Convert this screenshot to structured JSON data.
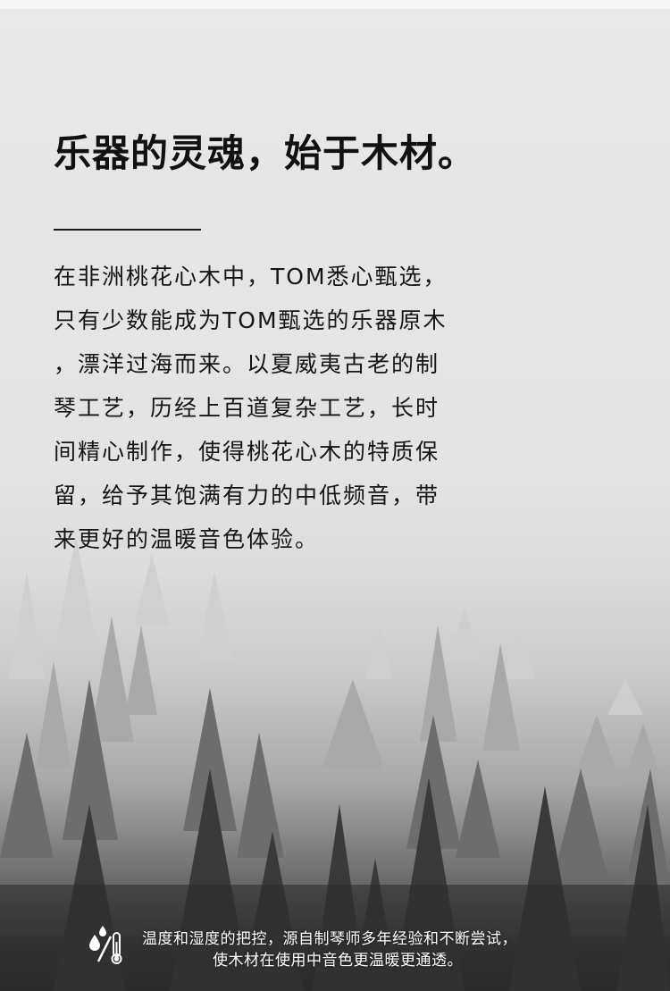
{
  "headline": "乐器的灵魂，始于木材。",
  "body_lines": [
    "在非洲桃花心木中，TOM悉心甄选，",
    "只有少数能成为TOM甄选的乐器原木",
    "，漂洋过海而来。以夏威夷古老的制",
    "琴工艺，历经上百道复杂工艺，长时",
    "间精心制作，使得桃花心木的特质保",
    "留，给予其饱满有力的中低频音，带",
    "来更好的温暖音色体验。"
  ],
  "footer": {
    "icon": "humidity-thermometer-icon",
    "lines": [
      "温度和湿度的把控，源自制琴师多年经验和不断尝试，",
      "使木材在使用中音色更温暖更通透。"
    ]
  },
  "colors": {
    "headline": "#111111",
    "body_text": "#151515",
    "footer_text": "#ffffff"
  }
}
